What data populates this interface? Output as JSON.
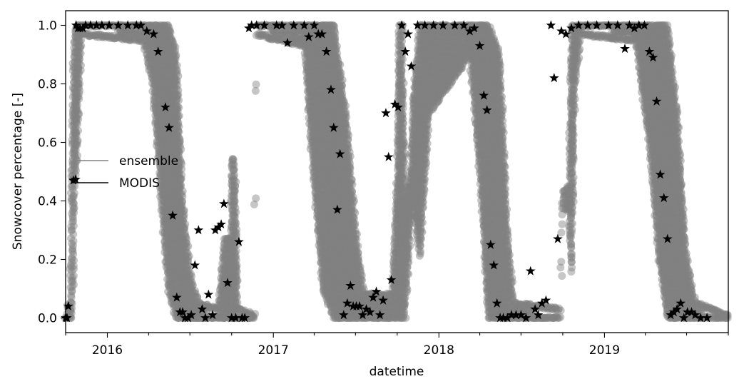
{
  "chart_data": {
    "type": "scatter",
    "title": "",
    "xlabel": "datetime",
    "ylabel": "Snowcover percentage [-]",
    "xlim": [
      "2015-10-01",
      "2019-10-01"
    ],
    "ylim": [
      -0.05,
      1.05
    ],
    "grid": false,
    "legend_position": "center-left",
    "x_ticks": [
      "2016",
      "2017",
      "2018",
      "2019"
    ],
    "y_ticks": [
      "0.0",
      "0.2",
      "0.4",
      "0.6",
      "0.8",
      "1.0"
    ],
    "colors": {
      "ensemble": "#808080",
      "modis": "#000000"
    },
    "series": [
      {
        "name": "ensemble",
        "marker": "circle",
        "envelope": [
          [
            "2015-10-01",
            0.0,
            0.0
          ],
          [
            "2015-10-06",
            0.0,
            0.04
          ],
          [
            "2015-10-12",
            0.0,
            0.05
          ],
          [
            "2015-10-16",
            0.0,
            0.65
          ],
          [
            "2015-10-20",
            0.46,
            0.95
          ],
          [
            "2015-10-26",
            0.55,
            1.0
          ],
          [
            "2015-11-05",
            0.97,
            1.0
          ],
          [
            "2016-03-20",
            0.95,
            1.0
          ],
          [
            "2016-04-10",
            0.8,
            1.0
          ],
          [
            "2016-05-01",
            0.35,
            1.0
          ],
          [
            "2016-05-15",
            0.1,
            1.0
          ],
          [
            "2016-06-01",
            0.0,
            0.9
          ],
          [
            "2016-06-15",
            0.0,
            0.4
          ],
          [
            "2016-07-01",
            0.0,
            0.15
          ],
          [
            "2016-07-20",
            0.0,
            0.05
          ],
          [
            "2016-09-01",
            0.0,
            0.03
          ],
          [
            "2016-09-15",
            0.0,
            0.27
          ],
          [
            "2016-09-30",
            0.0,
            0.27
          ],
          [
            "2016-10-01",
            0.0,
            0.54
          ],
          [
            "2016-10-08",
            0.0,
            0.54
          ],
          [
            "2016-10-15",
            0.0,
            0.03
          ],
          [
            "2016-11-20",
            0.0,
            0.01
          ],
          [
            "2016-11-25",
            0.97,
            1.0
          ],
          [
            "2017-03-10",
            0.93,
            1.0
          ],
          [
            "2017-04-01",
            0.45,
            1.0
          ],
          [
            "2017-04-20",
            0.1,
            1.0
          ],
          [
            "2017-05-15",
            0.0,
            1.0
          ],
          [
            "2017-06-10",
            0.0,
            0.7
          ],
          [
            "2017-07-01",
            0.0,
            0.3
          ],
          [
            "2017-07-20",
            0.0,
            0.08
          ],
          [
            "2017-09-20",
            0.0,
            0.08
          ],
          [
            "2017-10-01",
            0.0,
            0.5
          ],
          [
            "2017-10-05",
            0.0,
            1.0
          ],
          [
            "2017-10-12",
            0.0,
            1.0
          ],
          [
            "2017-10-18",
            0.0,
            0.4
          ],
          [
            "2017-10-30",
            0.3,
            0.5
          ],
          [
            "2017-11-05",
            0.4,
            0.75
          ],
          [
            "2017-11-20",
            0.2,
            1.0
          ],
          [
            "2017-12-10",
            0.7,
            1.0
          ],
          [
            "2018-03-10",
            0.9,
            1.0
          ],
          [
            "2018-04-01",
            0.5,
            1.0
          ],
          [
            "2018-04-20",
            0.0,
            1.0
          ],
          [
            "2018-05-15",
            0.0,
            0.9
          ],
          [
            "2018-06-01",
            0.0,
            0.3
          ],
          [
            "2018-06-15",
            0.0,
            0.05
          ],
          [
            "2018-09-25",
            0.0,
            0.03
          ],
          [
            "2018-09-30",
            0.37,
            0.43
          ],
          [
            "2018-10-15",
            0.37,
            0.45
          ],
          [
            "2018-10-20",
            0.1,
            1.0
          ],
          [
            "2018-10-28",
            0.8,
            1.0
          ],
          [
            "2018-11-10",
            0.97,
            1.0
          ],
          [
            "2019-03-10",
            0.95,
            1.0
          ],
          [
            "2019-04-10",
            0.6,
            1.0
          ],
          [
            "2019-05-01",
            0.2,
            1.0
          ],
          [
            "2019-05-20",
            0.0,
            1.0
          ],
          [
            "2019-06-10",
            0.0,
            0.7
          ],
          [
            "2019-07-01",
            0.0,
            0.2
          ],
          [
            "2019-07-20",
            0.0,
            0.05
          ],
          [
            "2019-10-01",
            0.0,
            0.01
          ]
        ]
      },
      {
        "name": "MODIS",
        "marker": "star",
        "points": [
          [
            "2015-10-01",
            0.0
          ],
          [
            "2015-10-04",
            0.0
          ],
          [
            "2015-10-07",
            0.04
          ],
          [
            "2015-10-18",
            0.47
          ],
          [
            "2015-10-24",
            1.0
          ],
          [
            "2015-10-28",
            0.99
          ],
          [
            "2015-11-02",
            0.99
          ],
          [
            "2015-11-08",
            0.99
          ],
          [
            "2015-11-14",
            1.0
          ],
          [
            "2015-11-25",
            1.0
          ],
          [
            "2015-12-08",
            1.0
          ],
          [
            "2015-12-20",
            1.0
          ],
          [
            "2016-01-05",
            1.0
          ],
          [
            "2016-01-25",
            1.0
          ],
          [
            "2016-02-15",
            1.0
          ],
          [
            "2016-03-05",
            1.0
          ],
          [
            "2016-03-15",
            1.0
          ],
          [
            "2016-03-28",
            0.98
          ],
          [
            "2016-04-12",
            0.97
          ],
          [
            "2016-04-22",
            0.91
          ],
          [
            "2016-05-08",
            0.72
          ],
          [
            "2016-05-16",
            0.65
          ],
          [
            "2016-05-24",
            0.35
          ],
          [
            "2016-06-02",
            0.07
          ],
          [
            "2016-06-09",
            0.02
          ],
          [
            "2016-06-15",
            0.02
          ],
          [
            "2016-06-20",
            0.0
          ],
          [
            "2016-06-27",
            0.0
          ],
          [
            "2016-07-04",
            0.01
          ],
          [
            "2016-07-12",
            0.18
          ],
          [
            "2016-07-20",
            0.3
          ],
          [
            "2016-07-28",
            0.03
          ],
          [
            "2016-08-04",
            0.0
          ],
          [
            "2016-08-11",
            0.08
          ],
          [
            "2016-08-20",
            0.01
          ],
          [
            "2016-08-26",
            0.3
          ],
          [
            "2016-09-02",
            0.31
          ],
          [
            "2016-09-08",
            0.32
          ],
          [
            "2016-09-14",
            0.39
          ],
          [
            "2016-09-22",
            0.12
          ],
          [
            "2016-10-01",
            0.0
          ],
          [
            "2016-10-10",
            0.0
          ],
          [
            "2016-10-17",
            0.26
          ],
          [
            "2016-10-24",
            0.0
          ],
          [
            "2016-10-30",
            0.0
          ],
          [
            "2016-11-08",
            0.99
          ],
          [
            "2016-11-14",
            1.0
          ],
          [
            "2016-11-25",
            1.0
          ],
          [
            "2016-12-12",
            1.0
          ],
          [
            "2017-01-08",
            1.0
          ],
          [
            "2017-01-20",
            1.0
          ],
          [
            "2017-02-01",
            0.94
          ],
          [
            "2017-02-15",
            1.0
          ],
          [
            "2017-03-10",
            1.0
          ],
          [
            "2017-03-20",
            0.96
          ],
          [
            "2017-04-01",
            1.0
          ],
          [
            "2017-04-10",
            0.97
          ],
          [
            "2017-04-18",
            0.97
          ],
          [
            "2017-04-28",
            0.91
          ],
          [
            "2017-05-08",
            0.78
          ],
          [
            "2017-05-14",
            0.65
          ],
          [
            "2017-05-22",
            0.37
          ],
          [
            "2017-05-28",
            0.56
          ],
          [
            "2017-06-05",
            0.01
          ],
          [
            "2017-06-13",
            0.05
          ],
          [
            "2017-06-20",
            0.11
          ],
          [
            "2017-06-26",
            0.04
          ],
          [
            "2017-07-03",
            0.04
          ],
          [
            "2017-07-10",
            0.04
          ],
          [
            "2017-07-17",
            0.01
          ],
          [
            "2017-07-25",
            0.03
          ],
          [
            "2017-08-02",
            0.02
          ],
          [
            "2017-08-09",
            0.07
          ],
          [
            "2017-08-16",
            0.09
          ],
          [
            "2017-08-24",
            0.01
          ],
          [
            "2017-08-31",
            0.06
          ],
          [
            "2017-09-06",
            0.7
          ],
          [
            "2017-09-12",
            0.55
          ],
          [
            "2017-09-18",
            0.13
          ],
          [
            "2017-09-26",
            0.73
          ],
          [
            "2017-10-03",
            0.72
          ],
          [
            "2017-10-11",
            1.0
          ],
          [
            "2017-10-19",
            0.91
          ],
          [
            "2017-10-25",
            0.97
          ],
          [
            "2017-11-01",
            0.86
          ],
          [
            "2017-11-15",
            1.0
          ],
          [
            "2017-12-01",
            1.0
          ],
          [
            "2017-12-20",
            1.0
          ],
          [
            "2018-01-10",
            1.0
          ],
          [
            "2018-02-05",
            1.0
          ],
          [
            "2018-02-25",
            1.0
          ],
          [
            "2018-03-10",
            0.98
          ],
          [
            "2018-03-20",
            0.99
          ],
          [
            "2018-04-01",
            0.93
          ],
          [
            "2018-04-10",
            0.76
          ],
          [
            "2018-04-17",
            0.71
          ],
          [
            "2018-04-25",
            0.25
          ],
          [
            "2018-05-02",
            0.18
          ],
          [
            "2018-05-09",
            0.05
          ],
          [
            "2018-05-16",
            0.0
          ],
          [
            "2018-05-23",
            0.0
          ],
          [
            "2018-06-01",
            0.0
          ],
          [
            "2018-06-10",
            0.01
          ],
          [
            "2018-06-20",
            0.01
          ],
          [
            "2018-07-01",
            0.01
          ],
          [
            "2018-07-12",
            0.0
          ],
          [
            "2018-07-22",
            0.16
          ],
          [
            "2018-08-01",
            0.03
          ],
          [
            "2018-08-08",
            0.01
          ],
          [
            "2018-08-16",
            0.05
          ],
          [
            "2018-08-25",
            0.06
          ],
          [
            "2018-09-05",
            1.0
          ],
          [
            "2018-09-12",
            0.82
          ],
          [
            "2018-09-20",
            0.27
          ],
          [
            "2018-09-28",
            0.98
          ],
          [
            "2018-10-08",
            0.97
          ],
          [
            "2018-10-20",
            0.99
          ],
          [
            "2018-11-05",
            1.0
          ],
          [
            "2018-11-25",
            1.0
          ],
          [
            "2018-12-15",
            1.0
          ],
          [
            "2019-01-10",
            1.0
          ],
          [
            "2019-01-30",
            1.0
          ],
          [
            "2019-02-15",
            0.92
          ],
          [
            "2019-02-25",
            1.0
          ],
          [
            "2019-03-08",
            0.99
          ],
          [
            "2019-03-18",
            1.0
          ],
          [
            "2019-03-30",
            1.0
          ],
          [
            "2019-04-10",
            0.91
          ],
          [
            "2019-04-18",
            0.89
          ],
          [
            "2019-04-26",
            0.74
          ],
          [
            "2019-05-04",
            0.49
          ],
          [
            "2019-05-12",
            0.41
          ],
          [
            "2019-05-20",
            0.27
          ],
          [
            "2019-05-27",
            0.01
          ],
          [
            "2019-06-03",
            0.02
          ],
          [
            "2019-06-10",
            0.03
          ],
          [
            "2019-06-18",
            0.05
          ],
          [
            "2019-06-25",
            0.0
          ],
          [
            "2019-07-03",
            0.02
          ],
          [
            "2019-07-12",
            0.02
          ],
          [
            "2019-07-20",
            0.01
          ],
          [
            "2019-08-01",
            0.0
          ],
          [
            "2019-08-15",
            0.0
          ]
        ]
      }
    ]
  }
}
